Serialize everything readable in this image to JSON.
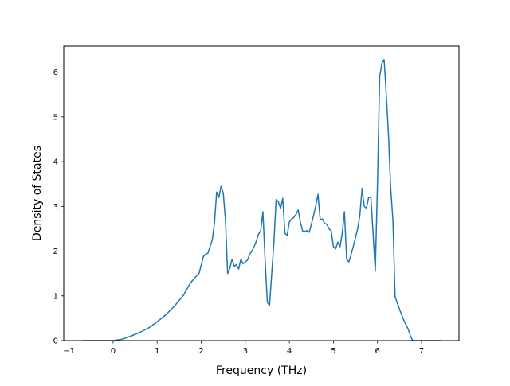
{
  "chart_data": {
    "type": "line",
    "title": "",
    "xlabel": "Frequency (THz)",
    "ylabel": "Density of States",
    "xlim": [
      -1.12,
      7.85
    ],
    "ylim": [
      0,
      6.58
    ],
    "xticks": [
      -1,
      0,
      1,
      2,
      3,
      4,
      5,
      6,
      7
    ],
    "xtick_labels": [
      "−1",
      "0",
      "1",
      "2",
      "3",
      "4",
      "5",
      "6",
      "7"
    ],
    "yticks": [
      0,
      1,
      2,
      3,
      4,
      5,
      6
    ],
    "ytick_labels": [
      "0",
      "1",
      "2",
      "3",
      "4",
      "5",
      "6"
    ],
    "grid": false,
    "legend": "none",
    "series": [
      {
        "color": "#1f77b4",
        "x": [
          -0.7,
          0.0,
          0.2,
          0.4,
          0.6,
          0.8,
          1.0,
          1.2,
          1.4,
          1.6,
          1.75,
          1.85,
          1.95,
          2.05,
          2.1,
          2.15,
          2.2,
          2.25,
          2.3,
          2.35,
          2.4,
          2.45,
          2.5,
          2.55,
          2.6,
          2.65,
          2.7,
          2.75,
          2.8,
          2.85,
          2.9,
          2.95,
          3.0,
          3.05,
          3.1,
          3.15,
          3.2,
          3.25,
          3.3,
          3.35,
          3.4,
          3.45,
          3.5,
          3.55,
          3.6,
          3.65,
          3.7,
          3.75,
          3.8,
          3.85,
          3.9,
          3.95,
          4.0,
          4.05,
          4.1,
          4.15,
          4.2,
          4.25,
          4.3,
          4.35,
          4.4,
          4.45,
          4.5,
          4.55,
          4.6,
          4.65,
          4.7,
          4.75,
          4.8,
          4.85,
          4.9,
          4.95,
          5.0,
          5.05,
          5.1,
          5.15,
          5.2,
          5.25,
          5.3,
          5.35,
          5.4,
          5.45,
          5.5,
          5.55,
          5.6,
          5.65,
          5.7,
          5.75,
          5.8,
          5.85,
          5.9,
          5.95,
          6.0,
          6.05,
          6.1,
          6.15,
          6.2,
          6.25,
          6.3,
          6.35,
          6.4,
          6.5,
          6.6,
          6.7,
          6.75,
          6.8,
          7.0,
          7.45
        ],
        "y": [
          0,
          0,
          0.03,
          0.1,
          0.18,
          0.28,
          0.42,
          0.58,
          0.78,
          1.02,
          1.28,
          1.4,
          1.5,
          1.88,
          1.93,
          1.95,
          2.1,
          2.25,
          2.62,
          3.32,
          3.2,
          3.45,
          3.3,
          2.7,
          1.5,
          1.62,
          1.82,
          1.66,
          1.7,
          1.6,
          1.82,
          1.72,
          1.76,
          1.8,
          1.93,
          2.0,
          2.1,
          2.22,
          2.38,
          2.45,
          2.88,
          1.8,
          0.86,
          0.78,
          1.5,
          2.2,
          3.15,
          3.1,
          2.96,
          3.18,
          2.4,
          2.35,
          2.65,
          2.72,
          2.75,
          2.82,
          2.92,
          2.65,
          2.45,
          2.44,
          2.46,
          2.42,
          2.6,
          2.8,
          3.02,
          3.27,
          2.7,
          2.72,
          2.62,
          2.6,
          2.5,
          2.45,
          2.1,
          2.05,
          2.2,
          2.1,
          2.4,
          2.88,
          1.82,
          1.76,
          1.92,
          2.1,
          2.3,
          2.5,
          2.8,
          3.4,
          3.0,
          2.96,
          3.2,
          3.2,
          2.4,
          1.55,
          3.5,
          5.9,
          6.2,
          6.28,
          5.5,
          4.6,
          3.4,
          2.7,
          0.98,
          0.7,
          0.45,
          0.25,
          0.1,
          0,
          0,
          0
        ]
      }
    ]
  }
}
